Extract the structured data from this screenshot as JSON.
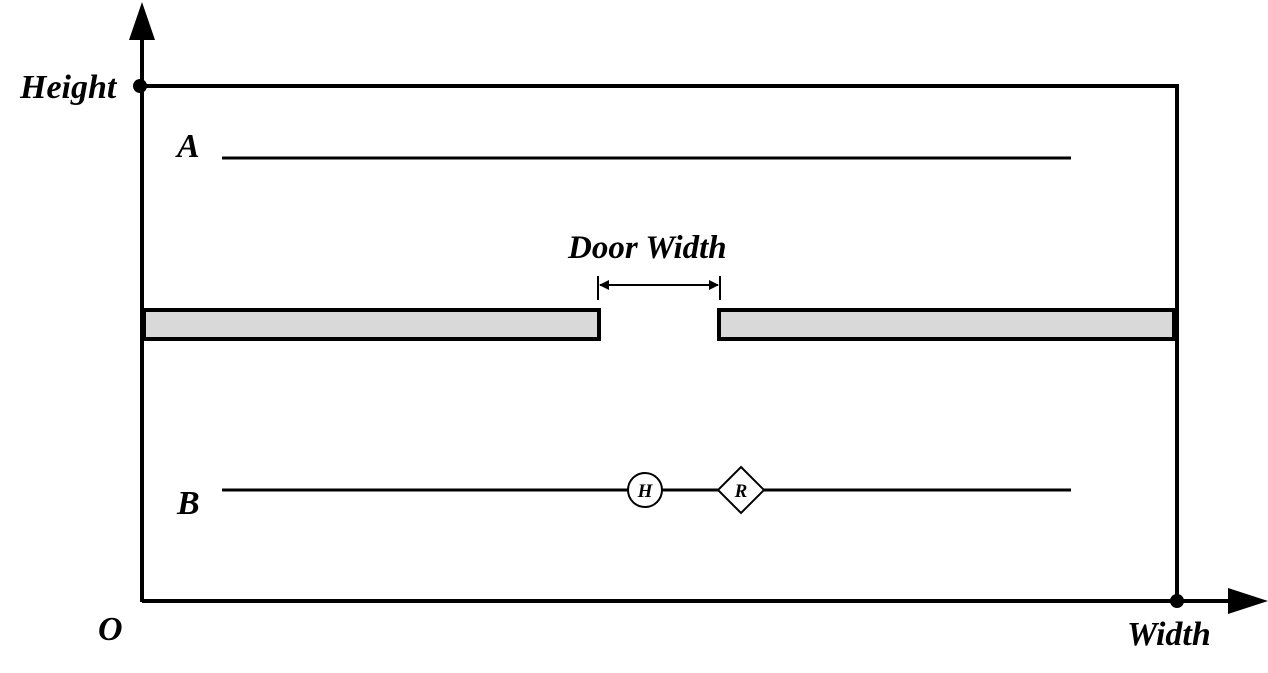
{
  "axes": {
    "y_label": "Height",
    "x_label": "Width",
    "origin_label": "O"
  },
  "lines": {
    "a_label": "A",
    "b_label": "B"
  },
  "door": {
    "label": "Door Width"
  },
  "markers": {
    "human_label": "H",
    "robot_label": "R"
  },
  "colors": {
    "wall_fill": "#d9d9d9",
    "stroke": "#000000"
  }
}
